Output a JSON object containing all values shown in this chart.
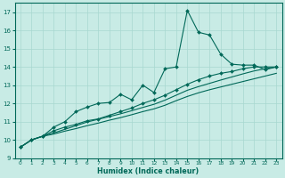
{
  "title": "",
  "xlabel": "Humidex (Indice chaleur)",
  "xlim": [
    -0.5,
    23.5
  ],
  "ylim": [
    9,
    17.5
  ],
  "yticks": [
    9,
    10,
    11,
    12,
    13,
    14,
    15,
    16,
    17
  ],
  "xticks": [
    0,
    1,
    2,
    3,
    4,
    5,
    6,
    7,
    8,
    9,
    10,
    11,
    12,
    13,
    14,
    15,
    16,
    17,
    18,
    19,
    20,
    21,
    22,
    23
  ],
  "bg_color": "#c8ebe5",
  "grid_color": "#a8d8d0",
  "line_color": "#006858",
  "line1_x": [
    0,
    1,
    2,
    3,
    4,
    5,
    6,
    7,
    8,
    9,
    10,
    11,
    12,
    13,
    14,
    15,
    16,
    17,
    18,
    19,
    20,
    21,
    22,
    23
  ],
  "line1_y": [
    9.6,
    10.0,
    10.2,
    10.7,
    11.0,
    11.55,
    11.8,
    12.0,
    12.05,
    12.5,
    12.2,
    13.0,
    12.6,
    13.9,
    14.0,
    17.1,
    15.9,
    15.75,
    14.7,
    14.15,
    14.1,
    14.1,
    13.85,
    14.0
  ],
  "line2_x": [
    0,
    1,
    2,
    3,
    4,
    5,
    6,
    7,
    8,
    9,
    10,
    11,
    12,
    13,
    14,
    15,
    16,
    17,
    18,
    19,
    20,
    21,
    22,
    23
  ],
  "line2_y": [
    9.6,
    10.0,
    10.2,
    10.5,
    10.7,
    10.85,
    11.05,
    11.15,
    11.35,
    11.55,
    11.75,
    12.0,
    12.2,
    12.45,
    12.75,
    13.05,
    13.3,
    13.5,
    13.65,
    13.75,
    13.9,
    14.0,
    14.0,
    14.0
  ],
  "line3_x": [
    0,
    1,
    2,
    3,
    4,
    5,
    6,
    7,
    8,
    9,
    10,
    11,
    12,
    13,
    14,
    15,
    16,
    17,
    18,
    19,
    20,
    21,
    22,
    23
  ],
  "line3_y": [
    9.6,
    10.0,
    10.2,
    10.38,
    10.58,
    10.78,
    10.98,
    11.13,
    11.28,
    11.43,
    11.6,
    11.78,
    11.95,
    12.18,
    12.45,
    12.72,
    12.92,
    13.1,
    13.28,
    13.45,
    13.62,
    13.78,
    13.9,
    14.0
  ],
  "line4_x": [
    0,
    1,
    2,
    3,
    4,
    5,
    6,
    7,
    8,
    9,
    10,
    11,
    12,
    13,
    14,
    15,
    16,
    17,
    18,
    19,
    20,
    21,
    22,
    23
  ],
  "line4_y": [
    9.6,
    10.0,
    10.2,
    10.32,
    10.48,
    10.62,
    10.78,
    10.92,
    11.08,
    11.22,
    11.38,
    11.55,
    11.7,
    11.9,
    12.15,
    12.38,
    12.58,
    12.75,
    12.9,
    13.05,
    13.2,
    13.35,
    13.5,
    13.65
  ]
}
